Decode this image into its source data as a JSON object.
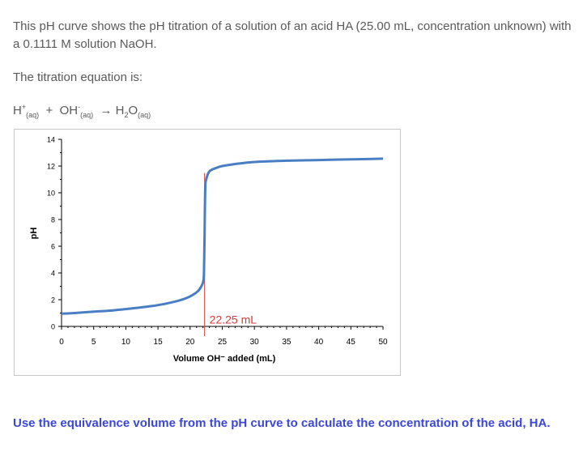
{
  "intro_text": "This pH curve shows the pH titration of a solution of an acid HA (25.00 mL, concentration unknown) with a 0.1111 M solution NaOH.",
  "equation_label": "The titration equation is:",
  "equation": {
    "h_base": "H",
    "h_sup": "+",
    "h_sub": "(aq)",
    "plus": "+",
    "oh_base": "OH",
    "oh_sup": "-",
    "oh_sub": "(aq)",
    "arrow": "→",
    "water_pre": "H",
    "water_sub2": "2",
    "water_post": "O",
    "water_sub": "(aq)"
  },
  "question": "Use the equivalence volume from the pH curve to calculate the concentration of the acid, HA.",
  "colors": {
    "curve": "#4a7ec4",
    "equivalence_line": "#d43c3c",
    "text_question": "#3b47d6"
  },
  "chart_data": {
    "type": "line",
    "xlabel": "Volume OH⁻ added (mL)",
    "ylabel": "pH",
    "xlim": [
      0,
      50
    ],
    "ylim": [
      0,
      14
    ],
    "xticks": [
      0,
      5,
      10,
      15,
      20,
      25,
      30,
      35,
      40,
      45,
      50
    ],
    "yticks": [
      0,
      2,
      4,
      6,
      8,
      10,
      12,
      14
    ],
    "grid": false,
    "equivalence": {
      "x": 22.25,
      "label": "22.25 mL"
    },
    "series": [
      {
        "x": [
          0,
          2,
          5,
          8,
          10,
          12,
          14,
          16,
          18,
          19,
          20,
          21,
          21.5,
          22,
          22.15,
          22.25,
          22.35,
          22.5,
          23,
          24,
          25,
          27,
          30,
          35,
          40,
          45,
          50
        ],
        "y": [
          0.95,
          1.0,
          1.1,
          1.2,
          1.3,
          1.4,
          1.52,
          1.68,
          1.9,
          2.05,
          2.25,
          2.55,
          2.8,
          3.3,
          4.0,
          7.0,
          10.3,
          11.0,
          11.6,
          11.85,
          12.0,
          12.15,
          12.3,
          12.4,
          12.45,
          12.5,
          12.55
        ]
      }
    ]
  }
}
